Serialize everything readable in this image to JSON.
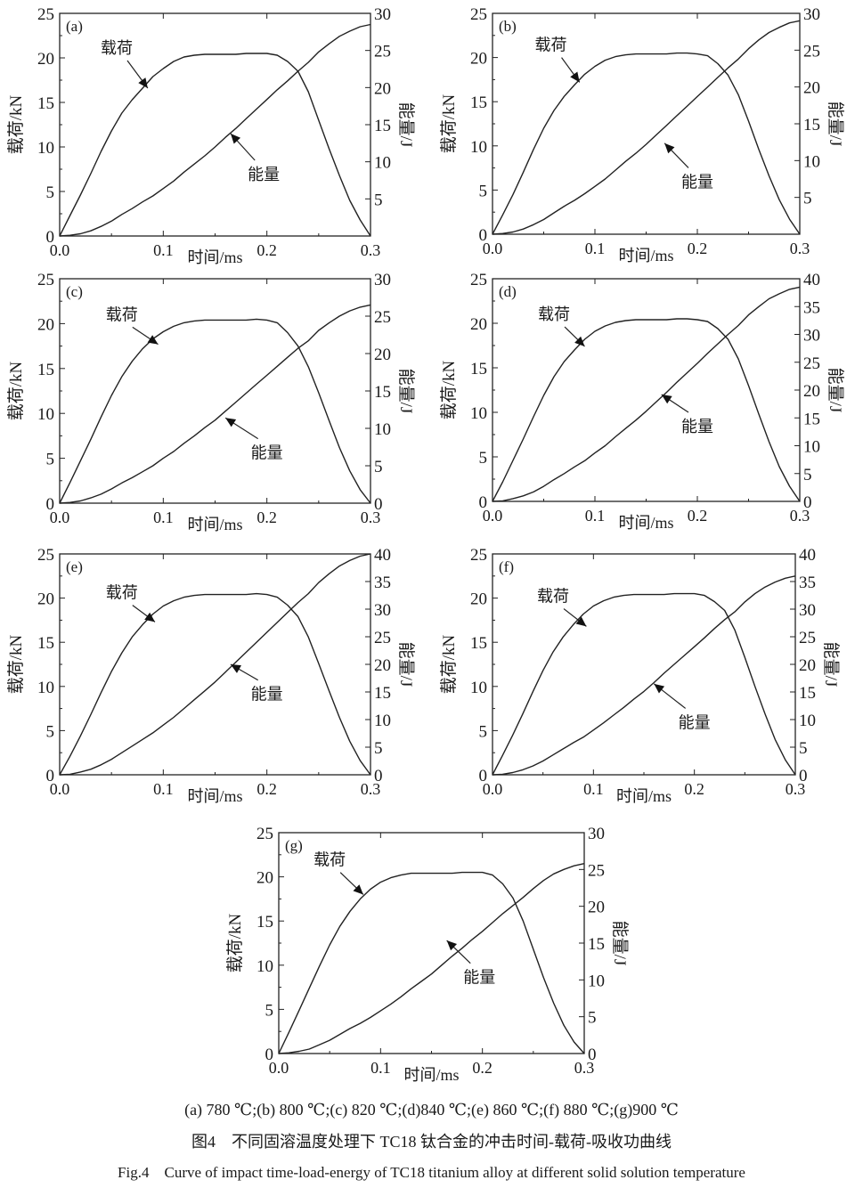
{
  "figure": {
    "subcaption": "(a) 780 ℃;(b) 800 ℃;(c) 820 ℃;(d)840 ℃;(e) 860 ℃;(f) 880 ℃;(g)900 ℃",
    "caption_cn": "图4　不同固溶温度处理下 TC18 钛合金的冲击时间-载荷-吸收功曲线",
    "caption_en": "Fig.4　Curve of impact time-load-energy of TC18 titanium alloy at different solid solution temperature"
  },
  "chart_data": [
    {
      "type": "line",
      "panel": "(a)",
      "xlabel": "时间/ms",
      "ylabel": "载荷/kN",
      "y2label": "能量/J",
      "xlim": [
        0,
        0.3
      ],
      "ylim": [
        0,
        25
      ],
      "y2lim": [
        0,
        30
      ],
      "xticks": [
        "0.0",
        "0.1",
        "0.2",
        "0.3"
      ],
      "yticks": [
        "0",
        "5",
        "10",
        "15",
        "20",
        "25"
      ],
      "y2ticks": [
        "5",
        "10",
        "15",
        "20",
        "25",
        "30"
      ],
      "annotations": [
        "载荷",
        "能量"
      ],
      "x": [
        0,
        0.01,
        0.02,
        0.03,
        0.04,
        0.05,
        0.06,
        0.07,
        0.08,
        0.09,
        0.1,
        0.11,
        0.12,
        0.13,
        0.14,
        0.15,
        0.16,
        0.17,
        0.18,
        0.19,
        0.2,
        0.21,
        0.22,
        0.23,
        0.24,
        0.25,
        0.26,
        0.27,
        0.28,
        0.29,
        0.3
      ],
      "series": [
        {
          "name": "载荷",
          "axis": "left",
          "values": [
            0,
            2.3,
            4.6,
            7.0,
            9.5,
            11.8,
            13.8,
            15.3,
            16.6,
            17.9,
            18.8,
            19.6,
            20.1,
            20.3,
            20.4,
            20.4,
            20.4,
            20.4,
            20.5,
            20.5,
            20.5,
            20.3,
            19.6,
            18.5,
            16.2,
            13.0,
            9.8,
            6.8,
            4.0,
            1.8,
            0
          ]
        },
        {
          "name": "能量",
          "axis": "right",
          "values": [
            0,
            0.1,
            0.3,
            0.7,
            1.3,
            2.0,
            2.9,
            3.7,
            4.6,
            5.4,
            6.4,
            7.4,
            8.6,
            9.7,
            10.8,
            12.0,
            13.3,
            14.5,
            15.8,
            17.1,
            18.4,
            19.7,
            20.9,
            22.2,
            23.4,
            24.8,
            25.9,
            26.9,
            27.6,
            28.2,
            28.5
          ]
        }
      ]
    },
    {
      "type": "line",
      "panel": "(b)",
      "xlabel": "时间/ms",
      "ylabel": "载荷/kN",
      "y2label": "能量/J",
      "xlim": [
        0,
        0.3
      ],
      "ylim": [
        0,
        25
      ],
      "y2lim": [
        0,
        30
      ],
      "xticks": [
        "0.0",
        "0.1",
        "0.2",
        "0.3"
      ],
      "yticks": [
        "0",
        "5",
        "10",
        "15",
        "20",
        "25"
      ],
      "y2ticks": [
        "5",
        "10",
        "15",
        "20",
        "25",
        "30"
      ],
      "annotations": [
        "载荷",
        "能量"
      ],
      "x": [
        0,
        0.01,
        0.02,
        0.03,
        0.04,
        0.05,
        0.06,
        0.07,
        0.08,
        0.09,
        0.1,
        0.11,
        0.12,
        0.13,
        0.14,
        0.15,
        0.16,
        0.17,
        0.18,
        0.19,
        0.2,
        0.21,
        0.22,
        0.23,
        0.24,
        0.25,
        0.26,
        0.27,
        0.28,
        0.29,
        0.3
      ],
      "series": [
        {
          "name": "载荷",
          "axis": "left",
          "values": [
            0,
            2.2,
            4.5,
            7.0,
            9.6,
            12.0,
            14.0,
            15.6,
            16.9,
            18.1,
            19.0,
            19.7,
            20.1,
            20.3,
            20.4,
            20.4,
            20.4,
            20.4,
            20.5,
            20.5,
            20.4,
            20.2,
            19.3,
            18.0,
            15.8,
            12.8,
            9.6,
            6.6,
            3.9,
            1.7,
            0
          ]
        },
        {
          "name": "能量",
          "axis": "right",
          "values": [
            0,
            0.1,
            0.3,
            0.7,
            1.3,
            2.0,
            2.9,
            3.8,
            4.6,
            5.5,
            6.5,
            7.5,
            8.7,
            9.9,
            11.0,
            12.2,
            13.5,
            14.8,
            16.1,
            17.4,
            18.7,
            20.0,
            21.3,
            22.6,
            23.8,
            25.2,
            26.4,
            27.4,
            28.1,
            28.7,
            29.0
          ]
        }
      ]
    },
    {
      "type": "line",
      "panel": "(c)",
      "xlabel": "时间/ms",
      "ylabel": "载荷/kN",
      "y2label": "能量/J",
      "xlim": [
        0,
        0.3
      ],
      "ylim": [
        0,
        25
      ],
      "y2lim": [
        0,
        30
      ],
      "xticks": [
        "0.0",
        "0.1",
        "0.2",
        "0.3"
      ],
      "yticks": [
        "0",
        "5",
        "10",
        "15",
        "20",
        "25"
      ],
      "y2ticks": [
        "0",
        "5",
        "10",
        "15",
        "20",
        "25",
        "30"
      ],
      "annotations": [
        "载荷",
        "能量"
      ],
      "x": [
        0,
        0.01,
        0.02,
        0.03,
        0.04,
        0.05,
        0.06,
        0.07,
        0.08,
        0.09,
        0.1,
        0.11,
        0.12,
        0.13,
        0.14,
        0.15,
        0.16,
        0.17,
        0.18,
        0.19,
        0.2,
        0.21,
        0.22,
        0.23,
        0.24,
        0.25,
        0.26,
        0.27,
        0.28,
        0.29,
        0.3
      ],
      "series": [
        {
          "name": "载荷",
          "axis": "left",
          "values": [
            0,
            2.3,
            4.7,
            7.1,
            9.6,
            12.0,
            14.1,
            15.8,
            17.2,
            18.3,
            19.1,
            19.7,
            20.1,
            20.3,
            20.4,
            20.4,
            20.4,
            20.4,
            20.4,
            20.5,
            20.4,
            20.1,
            19.0,
            17.5,
            15.2,
            12.3,
            9.2,
            6.2,
            3.6,
            1.5,
            0
          ]
        },
        {
          "name": "能量",
          "axis": "right",
          "values": [
            0,
            0.1,
            0.3,
            0.7,
            1.2,
            1.9,
            2.7,
            3.4,
            4.2,
            5.0,
            6.0,
            6.9,
            8.0,
            9.0,
            10.1,
            11.1,
            12.3,
            13.5,
            14.7,
            15.9,
            17.1,
            18.3,
            19.5,
            20.7,
            21.7,
            23.1,
            24.1,
            25.0,
            25.7,
            26.2,
            26.5
          ]
        }
      ]
    },
    {
      "type": "line",
      "panel": "(d)",
      "xlabel": "时间/ms",
      "ylabel": "载荷/kN",
      "y2label": "能量/J",
      "xlim": [
        0,
        0.3
      ],
      "ylim": [
        0,
        25
      ],
      "y2lim": [
        0,
        40
      ],
      "xticks": [
        "0.0",
        "0.1",
        "0.2",
        "0.3"
      ],
      "yticks": [
        "0",
        "5",
        "10",
        "15",
        "20",
        "25"
      ],
      "y2ticks": [
        "0",
        "5",
        "10",
        "15",
        "20",
        "25",
        "30",
        "35",
        "40"
      ],
      "annotations": [
        "载荷",
        "能量"
      ],
      "x": [
        0,
        0.01,
        0.02,
        0.03,
        0.04,
        0.05,
        0.06,
        0.07,
        0.08,
        0.09,
        0.1,
        0.11,
        0.12,
        0.13,
        0.14,
        0.15,
        0.16,
        0.17,
        0.18,
        0.19,
        0.2,
        0.21,
        0.22,
        0.23,
        0.24,
        0.25,
        0.26,
        0.27,
        0.28,
        0.29,
        0.3
      ],
      "series": [
        {
          "name": "载荷",
          "axis": "left",
          "values": [
            0,
            2.2,
            4.6,
            7.0,
            9.5,
            11.9,
            14.0,
            15.7,
            17.0,
            18.2,
            19.1,
            19.7,
            20.1,
            20.3,
            20.4,
            20.4,
            20.4,
            20.4,
            20.5,
            20.5,
            20.4,
            20.2,
            19.4,
            18.2,
            16.0,
            13.0,
            9.8,
            6.7,
            3.9,
            1.7,
            0
          ]
        },
        {
          "name": "能量",
          "axis": "right",
          "values": [
            0,
            0.1,
            0.5,
            1.0,
            1.7,
            2.7,
            3.9,
            5.0,
            6.2,
            7.3,
            8.7,
            10.0,
            11.6,
            13.1,
            14.6,
            16.2,
            17.9,
            19.6,
            21.4,
            23.1,
            24.8,
            26.6,
            28.3,
            30.0,
            31.6,
            33.5,
            35.0,
            36.4,
            37.3,
            38.1,
            38.5
          ]
        }
      ]
    },
    {
      "type": "line",
      "panel": "(e)",
      "xlabel": "时间/ms",
      "ylabel": "载荷/kN",
      "y2label": "能量/J",
      "xlim": [
        0,
        0.3
      ],
      "ylim": [
        0,
        25
      ],
      "y2lim": [
        0,
        40
      ],
      "xticks": [
        "0.0",
        "0.1",
        "0.2",
        "0.3"
      ],
      "yticks": [
        "0",
        "5",
        "10",
        "15",
        "20",
        "25"
      ],
      "y2ticks": [
        "0",
        "5",
        "10",
        "15",
        "20",
        "25",
        "30",
        "35",
        "40"
      ],
      "annotations": [
        "载荷",
        "能量"
      ],
      "x": [
        0,
        0.01,
        0.02,
        0.03,
        0.04,
        0.05,
        0.06,
        0.07,
        0.08,
        0.09,
        0.1,
        0.11,
        0.12,
        0.13,
        0.14,
        0.15,
        0.16,
        0.17,
        0.18,
        0.19,
        0.2,
        0.21,
        0.22,
        0.23,
        0.24,
        0.25,
        0.26,
        0.27,
        0.28,
        0.29,
        0.3
      ],
      "series": [
        {
          "name": "载荷",
          "axis": "left",
          "values": [
            0,
            2.1,
            4.4,
            6.8,
            9.3,
            11.7,
            13.8,
            15.6,
            17.0,
            18.2,
            19.1,
            19.7,
            20.1,
            20.3,
            20.4,
            20.4,
            20.4,
            20.4,
            20.4,
            20.5,
            20.4,
            20.1,
            19.2,
            17.9,
            15.6,
            12.6,
            9.5,
            6.5,
            3.8,
            1.6,
            0
          ]
        },
        {
          "name": "能量",
          "axis": "right",
          "values": [
            0,
            0.1,
            0.5,
            1.0,
            1.8,
            2.8,
            4.0,
            5.2,
            6.4,
            7.6,
            9.0,
            10.4,
            12.0,
            13.6,
            15.2,
            16.8,
            18.6,
            20.4,
            22.2,
            24.0,
            25.8,
            27.6,
            29.4,
            31.2,
            32.8,
            34.8,
            36.4,
            37.8,
            38.8,
            39.6,
            40.0
          ]
        }
      ]
    },
    {
      "type": "line",
      "panel": "(f)",
      "xlabel": "时间/ms",
      "ylabel": "载荷/kN",
      "y2label": "能量/J",
      "xlim": [
        0,
        0.3
      ],
      "ylim": [
        0,
        25
      ],
      "y2lim": [
        0,
        40
      ],
      "xticks": [
        "0.0",
        "0.1",
        "0.2",
        "0.3"
      ],
      "yticks": [
        "0",
        "5",
        "10",
        "15",
        "20",
        "25"
      ],
      "y2ticks": [
        "0",
        "5",
        "10",
        "15",
        "20",
        "25",
        "30",
        "35",
        "40"
      ],
      "annotations": [
        "载荷",
        "能量"
      ],
      "x": [
        0,
        0.01,
        0.02,
        0.03,
        0.04,
        0.05,
        0.06,
        0.07,
        0.08,
        0.09,
        0.1,
        0.11,
        0.12,
        0.13,
        0.14,
        0.15,
        0.16,
        0.17,
        0.18,
        0.19,
        0.2,
        0.21,
        0.22,
        0.23,
        0.24,
        0.25,
        0.26,
        0.27,
        0.28,
        0.29,
        0.3
      ],
      "series": [
        {
          "name": "载荷",
          "axis": "left",
          "values": [
            0,
            2.2,
            4.5,
            6.9,
            9.4,
            11.8,
            13.9,
            15.6,
            17.0,
            18.2,
            19.1,
            19.7,
            20.1,
            20.3,
            20.4,
            20.4,
            20.4,
            20.4,
            20.5,
            20.5,
            20.5,
            20.3,
            19.6,
            18.6,
            16.4,
            13.3,
            10.0,
            6.9,
            4.0,
            1.7,
            0
          ]
        },
        {
          "name": "能量",
          "axis": "right",
          "values": [
            0,
            0.1,
            0.4,
            0.9,
            1.6,
            2.5,
            3.6,
            4.7,
            5.8,
            6.8,
            8.1,
            9.4,
            10.8,
            12.2,
            13.7,
            15.1,
            16.7,
            18.4,
            20.0,
            21.6,
            23.2,
            24.8,
            26.5,
            28.1,
            29.5,
            31.3,
            32.8,
            34.0,
            34.9,
            35.6,
            36.0
          ]
        }
      ]
    },
    {
      "type": "line",
      "panel": "(g)",
      "xlabel": "时间/ms",
      "ylabel": "载荷/kN",
      "y2label": "能量/J",
      "xlim": [
        0,
        0.3
      ],
      "ylim": [
        0,
        25
      ],
      "y2lim": [
        0,
        30
      ],
      "xticks": [
        "0.0",
        "0.1",
        "0.2",
        "0.3"
      ],
      "yticks": [
        "0",
        "5",
        "10",
        "15",
        "20",
        "25"
      ],
      "y2ticks": [
        "0",
        "5",
        "10",
        "15",
        "20",
        "25",
        "30"
      ],
      "annotations": [
        "载荷",
        "能量"
      ],
      "x": [
        0,
        0.01,
        0.02,
        0.03,
        0.04,
        0.05,
        0.06,
        0.07,
        0.08,
        0.09,
        0.1,
        0.11,
        0.12,
        0.13,
        0.14,
        0.15,
        0.16,
        0.17,
        0.18,
        0.19,
        0.2,
        0.21,
        0.22,
        0.23,
        0.24,
        0.25,
        0.26,
        0.27,
        0.28,
        0.29,
        0.3
      ],
      "series": [
        {
          "name": "载荷",
          "axis": "left",
          "values": [
            0,
            2.4,
            4.9,
            7.4,
            9.9,
            12.3,
            14.4,
            16.1,
            17.5,
            18.6,
            19.4,
            19.9,
            20.2,
            20.4,
            20.4,
            20.4,
            20.4,
            20.4,
            20.5,
            20.5,
            20.5,
            20.2,
            19.2,
            17.6,
            15.0,
            11.8,
            8.6,
            5.7,
            3.2,
            1.3,
            0
          ]
        },
        {
          "name": "能量",
          "axis": "right",
          "values": [
            0,
            0.1,
            0.3,
            0.6,
            1.2,
            1.8,
            2.6,
            3.4,
            4.1,
            4.9,
            5.8,
            6.7,
            7.7,
            8.8,
            9.8,
            10.8,
            12.0,
            13.2,
            14.3,
            15.5,
            16.6,
            17.8,
            19.0,
            20.1,
            21.2,
            22.4,
            23.5,
            24.4,
            25.0,
            25.5,
            25.8
          ]
        }
      ]
    }
  ]
}
